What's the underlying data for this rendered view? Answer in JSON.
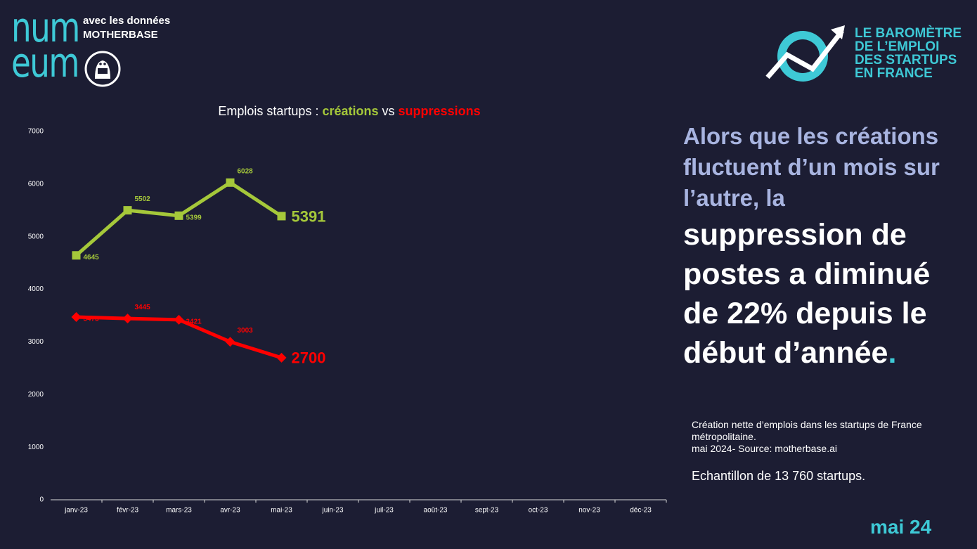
{
  "header": {
    "logo": [
      "num",
      "eum"
    ],
    "tagline": "avec les données",
    "brand": "MOTHERBASE",
    "barometer": [
      "LE BAROMÈTRE",
      "DE L’EMPLOI",
      "DES STARTUPS",
      "EN FRANCE"
    ]
  },
  "chart_data": {
    "type": "line",
    "title": "Emplois startups :",
    "connector": "vs",
    "categories": [
      "janv-23",
      "févr-23",
      "mars-23",
      "avr-23",
      "mai-23",
      "juin-23",
      "juil-23",
      "août-23",
      "sept-23",
      "oct-23",
      "nov-23",
      "déc-23"
    ],
    "series": [
      {
        "name": "créations",
        "color": "#a5c83a",
        "marker": "square",
        "values": [
          4645,
          5502,
          5399,
          6028,
          5391,
          null,
          null,
          null,
          null,
          null,
          null,
          null
        ]
      },
      {
        "name": "suppressions",
        "color": "#ff0000",
        "marker": "diamond",
        "values": [
          3473,
          3445,
          3421,
          3003,
          2700,
          null,
          null,
          null,
          null,
          null,
          null,
          null
        ]
      }
    ],
    "ylim": [
      0,
      7000
    ],
    "yticks": [
      0,
      1000,
      2000,
      3000,
      4000,
      5000,
      6000,
      7000
    ],
    "grid": false
  },
  "headline": {
    "intro": "Alors que les créations fluctuent d’un mois sur l’autre, la",
    "main": "suppression de postes a diminué de 22% depuis le début d’année",
    "end": "."
  },
  "notes": [
    "Création nette d’emplois dans les startups de France métropolitaine.",
    "mai 2024- Source: motherbase.ai",
    "Echantillon de 13 760 startups."
  ],
  "footer": "mai 24"
}
